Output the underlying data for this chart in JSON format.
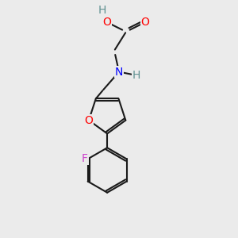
{
  "background_color": "#ebebeb",
  "bond_color": "#1a1a1a",
  "bond_width": 1.5,
  "atom_colors": {
    "O": "#ff0000",
    "N": "#0000ff",
    "F": "#cc44cc",
    "H_teal": "#5f9090"
  },
  "font_size": 10
}
